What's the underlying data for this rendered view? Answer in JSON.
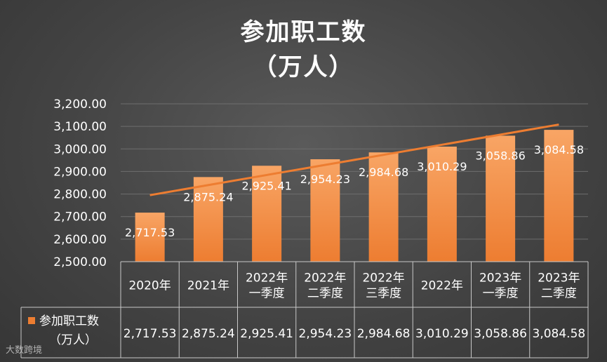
{
  "watermark": "大数跨境",
  "chart_data": {
    "type": "bar",
    "title": "参加职工数",
    "subtitle": "（万人）",
    "categories": [
      [
        "2020年"
      ],
      [
        "2021年"
      ],
      [
        "2022年",
        "一季度"
      ],
      [
        "2022年",
        "二季度"
      ],
      [
        "2022年",
        "三季度"
      ],
      [
        "2022年"
      ],
      [
        "2023年",
        "一季度"
      ],
      [
        "2023年",
        "二季度"
      ]
    ],
    "series": [
      {
        "name": "参加职工数（万人）",
        "values": [
          2717.53,
          2875.24,
          2925.41,
          2954.23,
          2984.68,
          3010.29,
          3058.86,
          3084.58
        ],
        "labels": [
          "2,717.53",
          "2,875.24",
          "2,925.41",
          "2,954.23",
          "2,984.68",
          "3,010.29",
          "3,058.86",
          "3,084.58"
        ]
      }
    ],
    "trendline": {
      "type": "linear",
      "start": 2795,
      "end": 3108
    },
    "yticks": [
      "3,200.00",
      "3,100.00",
      "3,000.00",
      "2,900.00",
      "2,800.00",
      "2,700.00",
      "2,600.00",
      "2,500.00"
    ],
    "ylim": [
      2500,
      3200
    ],
    "grid": true,
    "legend": "data-table",
    "data_table": true,
    "colors": {
      "bar": "#ed7d31",
      "bar_light": "#f8a565",
      "trend": "#ed7d31",
      "grid": "#6e6e6e",
      "text": "#ffffff",
      "table_border": "#c8c8c8"
    }
  }
}
